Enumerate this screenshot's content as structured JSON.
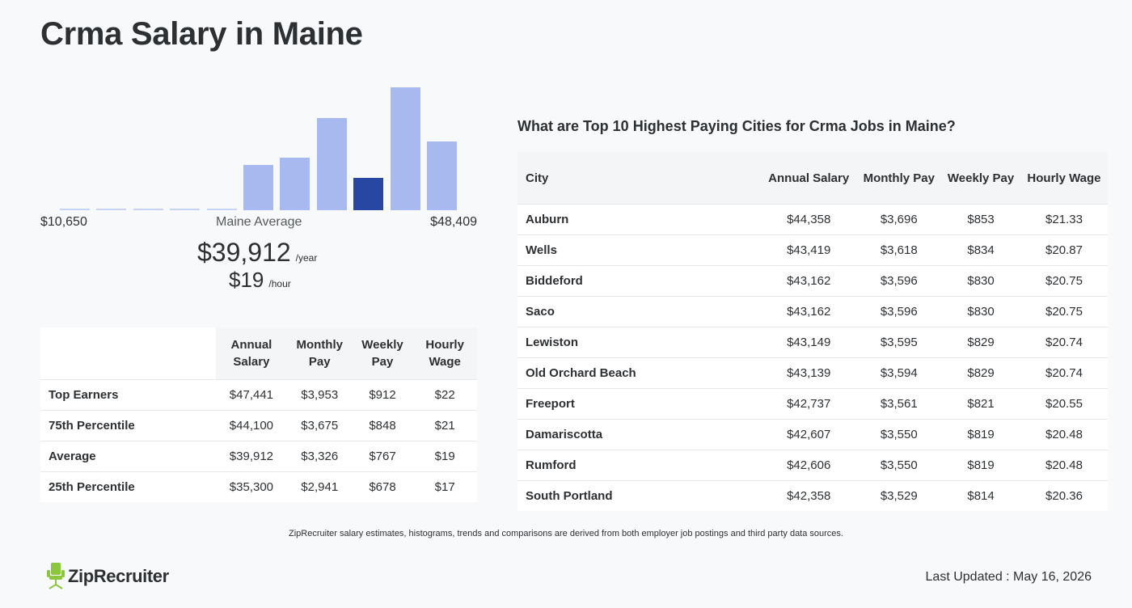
{
  "page": {
    "title": "Crma Salary in Maine"
  },
  "histogram": {
    "min_label": "$10,650",
    "max_label": "$48,409",
    "avg_label": "Maine Average",
    "bars": [
      {
        "value": 0.01,
        "active": false
      },
      {
        "value": 0.01,
        "active": false
      },
      {
        "value": 0.01,
        "active": false
      },
      {
        "value": 0.01,
        "active": false
      },
      {
        "value": 0.01,
        "active": false
      },
      {
        "value": 0.37,
        "active": false
      },
      {
        "value": 0.43,
        "active": false
      },
      {
        "value": 0.75,
        "active": false
      },
      {
        "value": 0.26,
        "active": true
      },
      {
        "value": 1.0,
        "active": false
      },
      {
        "value": 0.56,
        "active": false
      }
    ],
    "colors": {
      "bar": "#a8b9ef",
      "active": "#2847a3"
    }
  },
  "summary": {
    "annual": "$39,912",
    "annual_unit": "/year",
    "hourly": "$19",
    "hourly_unit": "/hour"
  },
  "percentile_table": {
    "headers": [
      "Annual Salary",
      "Monthly Pay",
      "Weekly Pay",
      "Hourly Wage"
    ],
    "rows": [
      {
        "label": "Top Earners",
        "values": [
          "$47,441",
          "$3,953",
          "$912",
          "$22"
        ]
      },
      {
        "label": "75th Percentile",
        "values": [
          "$44,100",
          "$3,675",
          "$848",
          "$21"
        ]
      },
      {
        "label": "Average",
        "values": [
          "$39,912",
          "$3,326",
          "$767",
          "$19"
        ]
      },
      {
        "label": "25th Percentile",
        "values": [
          "$35,300",
          "$2,941",
          "$678",
          "$17"
        ]
      }
    ]
  },
  "cities": {
    "heading": "What are Top 10 Highest Paying Cities for Crma Jobs in Maine?",
    "headers": [
      "City",
      "Annual Salary",
      "Monthly Pay",
      "Weekly Pay",
      "Hourly Wage"
    ],
    "rows": [
      {
        "city": "Auburn",
        "values": [
          "$44,358",
          "$3,696",
          "$853",
          "$21.33"
        ]
      },
      {
        "city": "Wells",
        "values": [
          "$43,419",
          "$3,618",
          "$834",
          "$20.87"
        ]
      },
      {
        "city": "Biddeford",
        "values": [
          "$43,162",
          "$3,596",
          "$830",
          "$20.75"
        ]
      },
      {
        "city": "Saco",
        "values": [
          "$43,162",
          "$3,596",
          "$830",
          "$20.75"
        ]
      },
      {
        "city": "Lewiston",
        "values": [
          "$43,149",
          "$3,595",
          "$829",
          "$20.74"
        ]
      },
      {
        "city": "Old Orchard Beach",
        "values": [
          "$43,139",
          "$3,594",
          "$829",
          "$20.74"
        ]
      },
      {
        "city": "Freeport",
        "values": [
          "$42,737",
          "$3,561",
          "$821",
          "$20.55"
        ]
      },
      {
        "city": "Damariscotta",
        "values": [
          "$42,607",
          "$3,550",
          "$819",
          "$20.48"
        ]
      },
      {
        "city": "Rumford",
        "values": [
          "$42,606",
          "$3,550",
          "$819",
          "$20.48"
        ]
      },
      {
        "city": "South Portland",
        "values": [
          "$42,358",
          "$3,529",
          "$814",
          "$20.36"
        ]
      }
    ]
  },
  "footer": {
    "disclaimer": "ZipRecruiter salary estimates, histograms, trends and comparisons are derived from both employer job postings and third party data sources.",
    "logo_text": "ZipRecruiter",
    "logo_icon": "ziprecruiter-chair-icon",
    "brand_color": "#8cc63f",
    "last_updated": "Last Updated : May 16, 2026"
  }
}
